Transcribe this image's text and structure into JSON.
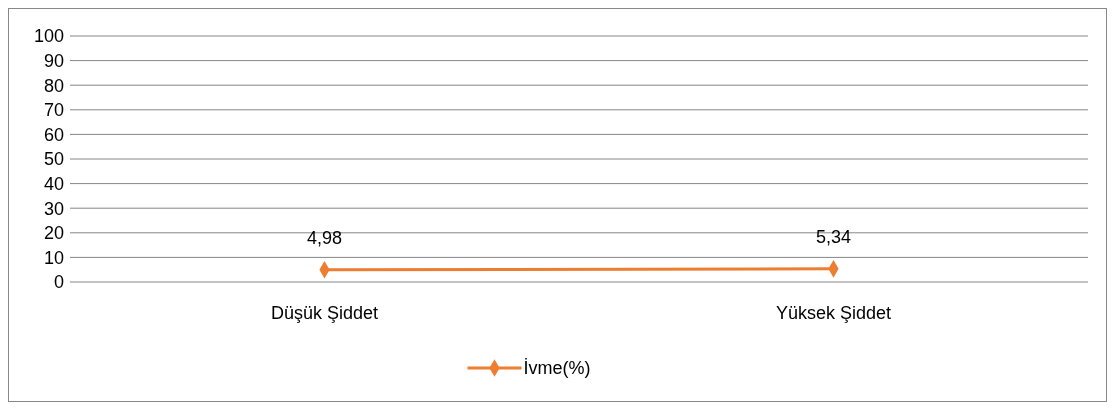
{
  "chart_data": {
    "type": "line",
    "categories": [
      "Düşük Şiddet",
      "Yüksek Şiddet"
    ],
    "series": [
      {
        "name": "İvme(%)",
        "color": "#ed7d31",
        "values": [
          4.98,
          5.34
        ],
        "value_labels": [
          "4,98",
          "5,34"
        ]
      }
    ],
    "ylim": [
      0,
      100
    ],
    "yticks": [
      0,
      10,
      20,
      30,
      40,
      50,
      60,
      70,
      80,
      90,
      100
    ],
    "grid": "y",
    "legend": "bottom",
    "marker": "diamond"
  }
}
